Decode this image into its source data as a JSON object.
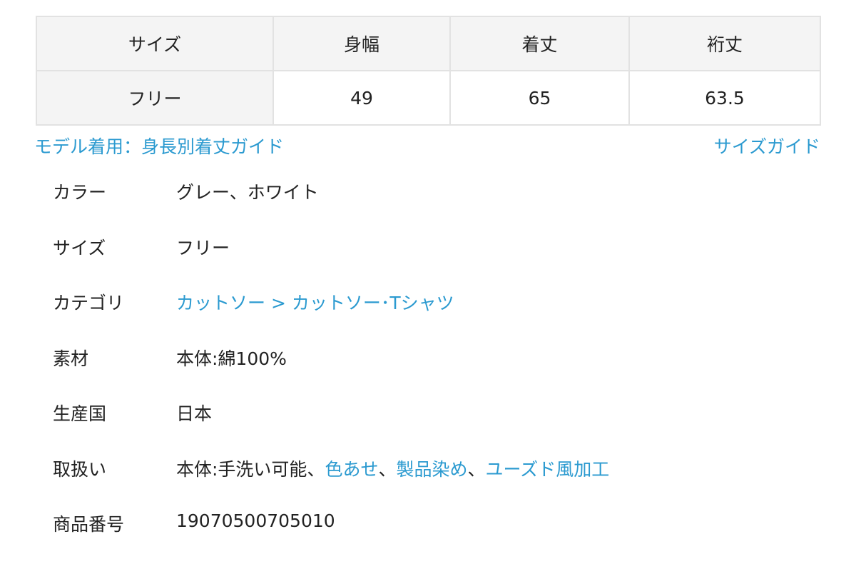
{
  "size_table": {
    "headers": [
      "サイズ",
      "身幅",
      "着丈",
      "裄丈"
    ],
    "rows": [
      [
        "フリー",
        "49",
        "65",
        "63.5"
      ]
    ]
  },
  "links": {
    "model_guide": "モデル着用：身長別着丈ガイド",
    "size_guide": "サイズガイド"
  },
  "specs": {
    "color": {
      "label": "カラー",
      "value": "グレー、ホワイト"
    },
    "size": {
      "label": "サイズ",
      "value": "フリー"
    },
    "category": {
      "label": "カテゴリ",
      "link1": "カットソー",
      "separator": " > ",
      "link2": "カットソー･Tシャツ"
    },
    "material": {
      "label": "素材",
      "value": "本体:綿100%"
    },
    "origin": {
      "label": "生産国",
      "value": "日本"
    },
    "care": {
      "label": "取扱い",
      "value": "本体:手洗い可能、",
      "link1": "色あせ",
      "sep1": "、",
      "link2": "製品染め",
      "sep2": "、",
      "link3": "ユーズド風加工"
    },
    "item_number": {
      "label": "商品番号",
      "value": "19070500705010"
    }
  },
  "colors": {
    "link": "#2b9ad0",
    "header_bg": "#f4f4f4",
    "border": "#e2e2e2"
  }
}
